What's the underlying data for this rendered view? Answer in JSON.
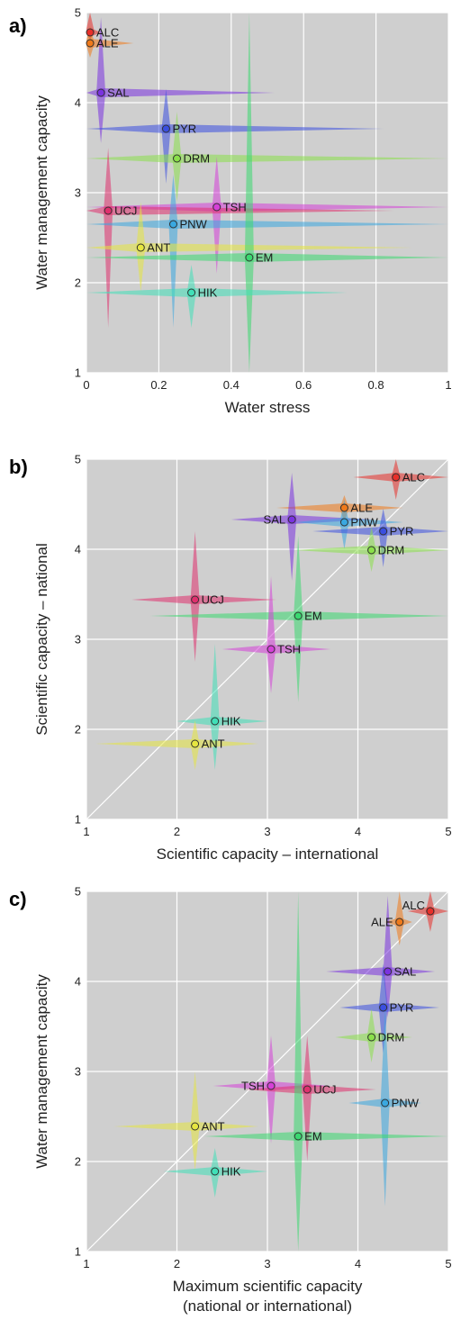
{
  "chart_data": [
    {
      "panel": "a)",
      "type": "scatter",
      "xlabel": "Water stress",
      "ylabel": "Water management capacity",
      "xlim": [
        0,
        1
      ],
      "ylim": [
        1,
        5
      ],
      "xticks": [
        "0",
        "0.2",
        "0.4",
        "0.6",
        "0.8",
        "1"
      ],
      "yticks": [
        "1",
        "2",
        "3",
        "4",
        "5"
      ],
      "diagonal": false,
      "grid": true,
      "points": [
        {
          "name": "ALC",
          "color": "#e8302a",
          "x": 0.01,
          "y": 4.78,
          "xerr": [
            0.0,
            0.04
          ],
          "yerr": [
            4.7,
            5.0
          ]
        },
        {
          "name": "ALE",
          "color": "#f07a1a",
          "x": 0.01,
          "y": 4.66,
          "xerr": [
            0.0,
            0.13
          ],
          "yerr": [
            4.5,
            4.85
          ]
        },
        {
          "name": "SAL",
          "color": "#7a32e0",
          "x": 0.04,
          "y": 4.11,
          "xerr": [
            0.0,
            0.52
          ],
          "yerr": [
            3.55,
            4.95
          ]
        },
        {
          "name": "PYR",
          "color": "#3a4fe0",
          "x": 0.22,
          "y": 3.71,
          "xerr": [
            0.0,
            0.82
          ],
          "yerr": [
            3.1,
            4.15
          ]
        },
        {
          "name": "DRM",
          "color": "#8ae04a",
          "x": 0.25,
          "y": 3.38,
          "xerr": [
            0.0,
            1.0
          ],
          "yerr": [
            2.9,
            3.9
          ]
        },
        {
          "name": "TSH",
          "color": "#d640d8",
          "x": 0.36,
          "y": 2.84,
          "xerr": [
            0.0,
            1.0
          ],
          "yerr": [
            2.1,
            3.4
          ]
        },
        {
          "name": "UCJ",
          "color": "#e0306e",
          "x": 0.06,
          "y": 2.8,
          "xerr": [
            0.0,
            0.85
          ],
          "yerr": [
            1.5,
            3.5
          ]
        },
        {
          "name": "PNW",
          "color": "#3aa8e0",
          "x": 0.24,
          "y": 2.65,
          "xerr": [
            0.0,
            1.0
          ],
          "yerr": [
            1.5,
            3.2
          ]
        },
        {
          "name": "ANT",
          "color": "#e6e640",
          "x": 0.15,
          "y": 2.39,
          "xerr": [
            0.0,
            0.9
          ],
          "yerr": [
            1.9,
            2.9
          ]
        },
        {
          "name": "EM",
          "color": "#3ad870",
          "x": 0.45,
          "y": 2.28,
          "xerr": [
            0.0,
            1.0
          ],
          "yerr": [
            1.0,
            5.0
          ]
        },
        {
          "name": "HIK",
          "color": "#40e0b8",
          "x": 0.29,
          "y": 1.89,
          "xerr": [
            0.0,
            0.72
          ],
          "yerr": [
            1.5,
            2.2
          ]
        }
      ]
    },
    {
      "panel": "b)",
      "type": "scatter",
      "xlabel": "Scientific capacity – international",
      "ylabel": "Scientific capacity – national",
      "xlim": [
        1,
        5
      ],
      "ylim": [
        1,
        5
      ],
      "xticks": [
        "1",
        "2",
        "3",
        "4",
        "5"
      ],
      "yticks": [
        "1",
        "2",
        "3",
        "4",
        "5"
      ],
      "diagonal": true,
      "grid": true,
      "points": [
        {
          "name": "ALC",
          "color": "#e8302a",
          "x": 4.42,
          "y": 4.8,
          "xerr": [
            3.95,
            5.0
          ],
          "yerr": [
            4.55,
            5.0
          ]
        },
        {
          "name": "ALE",
          "color": "#f07a1a",
          "x": 3.85,
          "y": 4.46,
          "xerr": [
            3.1,
            4.5
          ],
          "yerr": [
            4.3,
            4.6
          ]
        },
        {
          "name": "SAL",
          "color": "#7a32e0",
          "x": 3.27,
          "y": 4.33,
          "xerr": [
            2.6,
            4.15
          ],
          "yerr": [
            3.65,
            4.85
          ]
        },
        {
          "name": "PNW",
          "color": "#3aa8e0",
          "x": 3.85,
          "y": 4.3,
          "xerr": [
            3.3,
            4.5
          ],
          "yerr": [
            4.0,
            4.55
          ]
        },
        {
          "name": "PYR",
          "color": "#3a4fe0",
          "x": 4.28,
          "y": 4.2,
          "xerr": [
            3.5,
            5.0
          ],
          "yerr": [
            3.8,
            4.45
          ]
        },
        {
          "name": "DRM",
          "color": "#8ae04a",
          "x": 4.15,
          "y": 3.99,
          "xerr": [
            3.3,
            5.0
          ],
          "yerr": [
            3.75,
            4.25
          ]
        },
        {
          "name": "UCJ",
          "color": "#e0306e",
          "x": 2.2,
          "y": 3.44,
          "xerr": [
            1.5,
            3.1
          ],
          "yerr": [
            2.75,
            4.2
          ]
        },
        {
          "name": "EM",
          "color": "#3ad870",
          "x": 3.34,
          "y": 3.26,
          "xerr": [
            1.7,
            5.0
          ],
          "yerr": [
            2.3,
            4.15
          ]
        },
        {
          "name": "TSH",
          "color": "#d640d8",
          "x": 3.04,
          "y": 2.89,
          "xerr": [
            2.5,
            3.7
          ],
          "yerr": [
            2.4,
            3.7
          ]
        },
        {
          "name": "HIK",
          "color": "#40e0b8",
          "x": 2.42,
          "y": 2.09,
          "xerr": [
            2.0,
            3.0
          ],
          "yerr": [
            1.55,
            2.95
          ]
        },
        {
          "name": "ANT",
          "color": "#e6e640",
          "x": 2.2,
          "y": 1.84,
          "xerr": [
            1.1,
            2.9
          ],
          "yerr": [
            1.55,
            2.1
          ]
        }
      ]
    },
    {
      "panel": "c)",
      "type": "scatter",
      "xlabel": "Maximum scientific capacity",
      "xlabel2": "(national or international)",
      "ylabel": "Water management capacity",
      "xlim": [
        1,
        5
      ],
      "ylim": [
        1,
        5
      ],
      "xticks": [
        "1",
        "2",
        "3",
        "4",
        "5"
      ],
      "yticks": [
        "1",
        "2",
        "3",
        "4",
        "5"
      ],
      "diagonal": true,
      "grid": true,
      "points": [
        {
          "name": "ALC",
          "color": "#e8302a",
          "x": 4.8,
          "y": 4.78,
          "xerr": [
            4.55,
            5.0
          ],
          "yerr": [
            4.55,
            5.0
          ]
        },
        {
          "name": "ALE",
          "color": "#f07a1a",
          "x": 4.46,
          "y": 4.66,
          "xerr": [
            4.3,
            4.6
          ],
          "yerr": [
            4.4,
            5.0
          ]
        },
        {
          "name": "SAL",
          "color": "#7a32e0",
          "x": 4.33,
          "y": 4.11,
          "xerr": [
            3.65,
            4.85
          ],
          "yerr": [
            3.6,
            4.95
          ]
        },
        {
          "name": "PYR",
          "color": "#3a4fe0",
          "x": 4.28,
          "y": 3.71,
          "xerr": [
            3.8,
            4.9
          ],
          "yerr": [
            3.2,
            4.2
          ]
        },
        {
          "name": "DRM",
          "color": "#8ae04a",
          "x": 4.15,
          "y": 3.38,
          "xerr": [
            3.75,
            4.6
          ],
          "yerr": [
            3.1,
            3.7
          ]
        },
        {
          "name": "TSH",
          "color": "#d640d8",
          "x": 3.04,
          "y": 2.84,
          "xerr": [
            2.4,
            3.7
          ],
          "yerr": [
            2.2,
            3.4
          ]
        },
        {
          "name": "UCJ",
          "color": "#e0306e",
          "x": 3.44,
          "y": 2.8,
          "xerr": [
            2.75,
            4.2
          ],
          "yerr": [
            2.0,
            3.4
          ]
        },
        {
          "name": "PNW",
          "color": "#3aa8e0",
          "x": 4.3,
          "y": 2.65,
          "xerr": [
            3.9,
            4.7
          ],
          "yerr": [
            1.5,
            3.7
          ]
        },
        {
          "name": "ANT",
          "color": "#e6e640",
          "x": 2.2,
          "y": 2.39,
          "xerr": [
            1.3,
            2.9
          ],
          "yerr": [
            1.9,
            3.0
          ]
        },
        {
          "name": "EM",
          "color": "#3ad870",
          "x": 3.34,
          "y": 2.28,
          "xerr": [
            2.3,
            5.0
          ],
          "yerr": [
            1.0,
            5.0
          ]
        },
        {
          "name": "HIK",
          "color": "#40e0b8",
          "x": 2.42,
          "y": 1.89,
          "xerr": [
            1.85,
            3.0
          ],
          "yerr": [
            1.6,
            2.15
          ]
        }
      ]
    }
  ]
}
